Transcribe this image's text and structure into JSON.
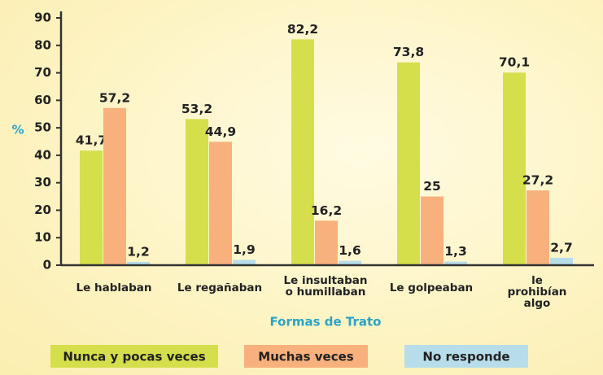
{
  "chart_data": {
    "type": "bar",
    "xlabel": "Formas de Trato",
    "ylabel": "%",
    "categories": [
      "Le hablaban",
      "Le regañaban",
      "Le insultaban\no humillaban",
      "Le golpeaban",
      "le prohibían\nalgo"
    ],
    "series": [
      {
        "name": "Nunca y pocas veces",
        "color": "#d5df4c",
        "values": [
          41.7,
          53.2,
          82.2,
          73.8,
          70.1
        ],
        "value_labels": [
          "41,7",
          "53,2",
          "82,2",
          "73,8",
          "70,1"
        ]
      },
      {
        "name": "Muchas veces",
        "color": "#f8b07c",
        "values": [
          57.2,
          44.9,
          16.2,
          25,
          27.2
        ],
        "value_labels": [
          "57,2",
          "44,9",
          "16,2",
          "25",
          "27,2"
        ]
      },
      {
        "name": "No responde",
        "color": "#b6dde9",
        "values": [
          1.2,
          1.9,
          1.6,
          1.3,
          2.7
        ],
        "value_labels": [
          "1,2",
          "1,9",
          "1,6",
          "1,3",
          "2,7"
        ]
      }
    ],
    "ylim": [
      0,
      90
    ],
    "yticks": [
      0,
      10,
      20,
      30,
      40,
      50,
      60,
      70,
      80,
      90
    ],
    "grid": false,
    "legend": "bottom"
  }
}
